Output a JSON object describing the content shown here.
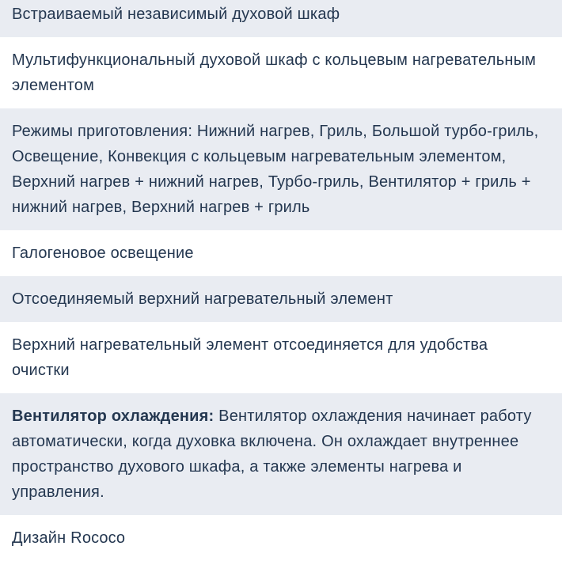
{
  "table": {
    "text_color": "#243750",
    "shaded_row_color": "#e9ecf2",
    "rows": [
      {
        "bold_prefix": "",
        "text": "Встраиваемый независимый духовой шкаф"
      },
      {
        "bold_prefix": "",
        "text": "Мультифункциональный духовой шкаф с кольцевым нагревательным элементом"
      },
      {
        "bold_prefix": "",
        "text": "Режимы приготовления: Нижний нагрев, Гриль, Большой турбо-гриль, Освещение, Конвекция с кольцевым нагревательным элементом, Верхний нагрев + нижний нагрев, Турбо-гриль, Вентилятор + гриль + нижний нагрев, Верхний нагрев + гриль"
      },
      {
        "bold_prefix": "",
        "text": "Галогеновое освещение"
      },
      {
        "bold_prefix": "",
        "text": "Отсоединяемый верхний нагревательный элемент"
      },
      {
        "bold_prefix": "",
        "text": "Верхний нагревательный элемент отсоединяется для удобства очистки"
      },
      {
        "bold_prefix": "Вентилятор охлаждения:",
        "text": "Вентилятор охлаждения начинает работу автоматически, когда духовка включена. Он охлаждает внутреннее пространство духового шкафа, а также элементы нагрева и управления."
      },
      {
        "bold_prefix": "",
        "text": "Дизайн Rococo"
      }
    ]
  }
}
